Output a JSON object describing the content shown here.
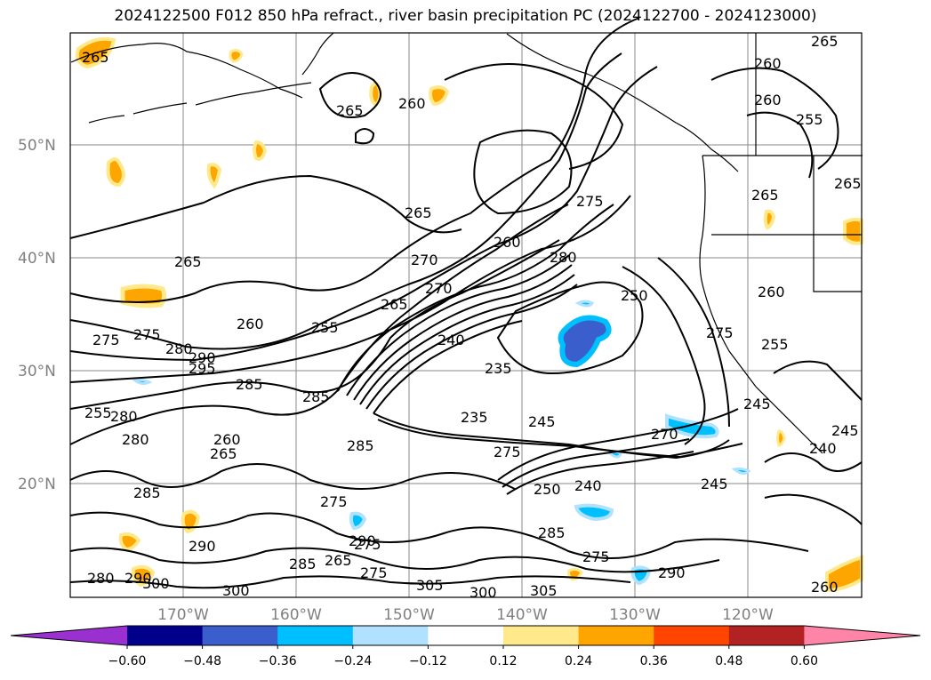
{
  "title": "2024122500 F012 850 hPa refract., river basin precipitation PC (2024122700 - 2024123000)",
  "lat_labels": [
    "50°N",
    "40°N",
    "30°N",
    "20°N"
  ],
  "lon_labels": [
    "170°W",
    "160°W",
    "150°W",
    "140°W",
    "130°W",
    "120°W"
  ],
  "colorbar": {
    "ticks": [
      "−0.60",
      "−0.48",
      "−0.36",
      "−0.24",
      "−0.12",
      "0.12",
      "0.24",
      "0.36",
      "0.48",
      "0.60"
    ],
    "colors": [
      "#9b30d0",
      "#00008b",
      "#3a5fcd",
      "#00bfff",
      "#b0e2ff",
      "#ffffff",
      "#ffe98a",
      "#ffa500",
      "#ff4500",
      "#b22222",
      "#ff85a8"
    ]
  },
  "contour_labels": [
    "265",
    "260",
    "265",
    "260",
    "265",
    "260",
    "255",
    "265",
    "265",
    "265",
    "275",
    "270",
    "260",
    "265",
    "280",
    "270",
    "265",
    "250",
    "260",
    "275",
    "275",
    "280",
    "295",
    "290",
    "260",
    "255",
    "240",
    "235",
    "285",
    "275",
    "285",
    "255",
    "245",
    "255",
    "280",
    "280",
    "260",
    "265",
    "285",
    "235",
    "245",
    "270",
    "275",
    "240",
    "245",
    "285",
    "275",
    "250",
    "240",
    "245",
    "275",
    "285",
    "290",
    "285",
    "265",
    "275",
    "280",
    "290",
    "305",
    "300",
    "300",
    "305",
    "290",
    "275",
    "290",
    "300",
    "260"
  ]
}
